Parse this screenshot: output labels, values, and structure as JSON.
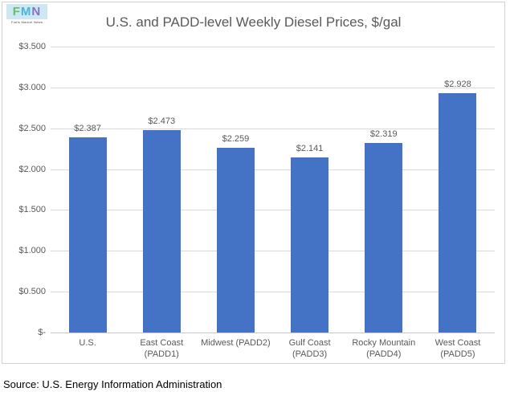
{
  "header": {
    "logo": {
      "letters": [
        "F",
        "M",
        "N"
      ],
      "tagline": "Fuels Market News"
    }
  },
  "chart_data": {
    "type": "bar",
    "title": "U.S. and PADD-level Weekly Diesel Prices, $/gal",
    "categories": [
      "U.S.",
      "East Coast (PADD1)",
      "Midwest (PADD2)",
      "Gulf Coast (PADD3)",
      "Rocky Mountain (PADD4)",
      "West Coast (PADD5)"
    ],
    "category_lines": [
      [
        "U.S."
      ],
      [
        "East Coast",
        "(PADD1)"
      ],
      [
        "Midwest (PADD2)"
      ],
      [
        "Gulf Coast",
        "(PADD3)"
      ],
      [
        "Rocky Mountain",
        "(PADD4)"
      ],
      [
        "West Coast",
        "(PADD5)"
      ]
    ],
    "values": [
      2.387,
      2.473,
      2.259,
      2.141,
      2.319,
      2.928
    ],
    "data_labels": [
      "$2.387",
      "$2.473",
      "$2.259",
      "$2.141",
      "$2.319",
      "$2.928"
    ],
    "xlabel": "",
    "ylabel": "",
    "ylim": [
      0,
      3.5
    ],
    "y_ticks": [
      3.5,
      3.0,
      2.5,
      2.0,
      1.5,
      1.0,
      0.5,
      0
    ],
    "y_tick_labels": [
      "$3.500",
      "$3.000",
      "$2.500",
      "$2.000",
      "$1.500",
      "$1.000",
      "$0.500",
      "$-"
    ],
    "grid": true,
    "legend": false,
    "bar_color": "#4472C4",
    "grid_color": "#D9D9D9",
    "axis_text_color": "#595959",
    "title_color": "#595959"
  },
  "footer": {
    "source": "Source: U.S. Energy Information Administration"
  }
}
